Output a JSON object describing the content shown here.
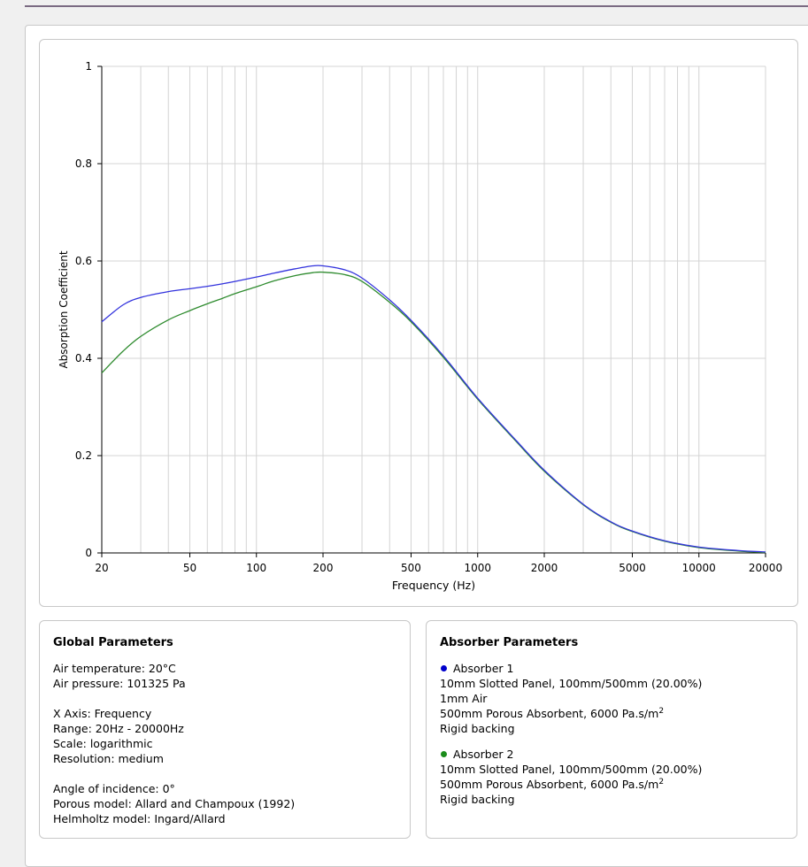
{
  "chart_data": {
    "type": "line",
    "xlabel": "Frequency (Hz)",
    "ylabel": "Absorption Coefficient",
    "x_scale": "log",
    "xlim": [
      20,
      20000
    ],
    "ylim": [
      0,
      1
    ],
    "grid": true,
    "x_ticks": [
      20,
      50,
      100,
      200,
      500,
      1000,
      2000,
      5000,
      10000,
      20000
    ],
    "x_tick_labels": [
      "20",
      "50",
      "100",
      "200",
      "500",
      "1000",
      "2000",
      "5000",
      "10000",
      "20000"
    ],
    "x_minor_gridlines": [
      30,
      40,
      60,
      70,
      80,
      90,
      300,
      400,
      600,
      700,
      800,
      900,
      3000,
      4000,
      6000,
      7000,
      8000,
      9000
    ],
    "y_ticks": [
      0,
      0.2,
      0.4,
      0.6,
      0.8,
      1
    ],
    "y_tick_labels": [
      "0",
      "0.2",
      "0.4",
      "0.6",
      "0.8",
      "1"
    ],
    "x": [
      20,
      25,
      30,
      40,
      50,
      60,
      70,
      80,
      100,
      120,
      150,
      180,
      200,
      250,
      300,
      400,
      500,
      700,
      1000,
      1500,
      2000,
      3000,
      4000,
      5000,
      7000,
      10000,
      15000,
      20000
    ],
    "series": [
      {
        "color": "#3333dd",
        "values": [
          0.475,
          0.51,
          0.525,
          0.537,
          0.543,
          0.548,
          0.553,
          0.558,
          0.567,
          0.575,
          0.584,
          0.59,
          0.59,
          0.582,
          0.565,
          0.52,
          0.478,
          0.405,
          0.318,
          0.23,
          0.17,
          0.1,
          0.064,
          0.045,
          0.025,
          0.012,
          0.005,
          0.002
        ]
      },
      {
        "color": "#2e8b2e",
        "values": [
          0.37,
          0.415,
          0.445,
          0.479,
          0.498,
          0.512,
          0.523,
          0.533,
          0.547,
          0.559,
          0.57,
          0.576,
          0.577,
          0.572,
          0.558,
          0.515,
          0.475,
          0.402,
          0.316,
          0.228,
          0.168,
          0.099,
          0.063,
          0.044,
          0.024,
          0.011,
          0.004,
          0.001
        ]
      }
    ]
  },
  "global_parameters": {
    "title": "Global Parameters",
    "air_temperature": "Air temperature: 20°C",
    "air_pressure": "Air pressure: 101325 Pa",
    "x_axis": "X Axis: Frequency",
    "range": "Range: 20Hz - 20000Hz",
    "scale": "Scale: logarithmic",
    "resolution": "Resolution: medium",
    "angle": "Angle of incidence: 0°",
    "porous_model": "Porous model: Allard and Champoux (1992)",
    "helmholtz_model": "Helmholtz model: Ingard/Allard"
  },
  "absorber_parameters": {
    "title": "Absorber Parameters",
    "absorbers": [
      {
        "name": "Absorber 1",
        "color": "#0000cc",
        "line1": "10mm Slotted Panel, 100mm/500mm (20.00%)",
        "line2": "1mm Air",
        "line3": "500mm Porous Absorbent, 6000 Pa.s/m",
        "line3_sup": "2",
        "line4": "Rigid backing"
      },
      {
        "name": "Absorber 2",
        "color": "#1a8c1a",
        "line1": "10mm Slotted Panel, 100mm/500mm (20.00%)",
        "line2": "500mm Porous Absorbent, 6000 Pa.s/m",
        "line2_sup": "2",
        "line3": "Rigid backing"
      }
    ]
  }
}
